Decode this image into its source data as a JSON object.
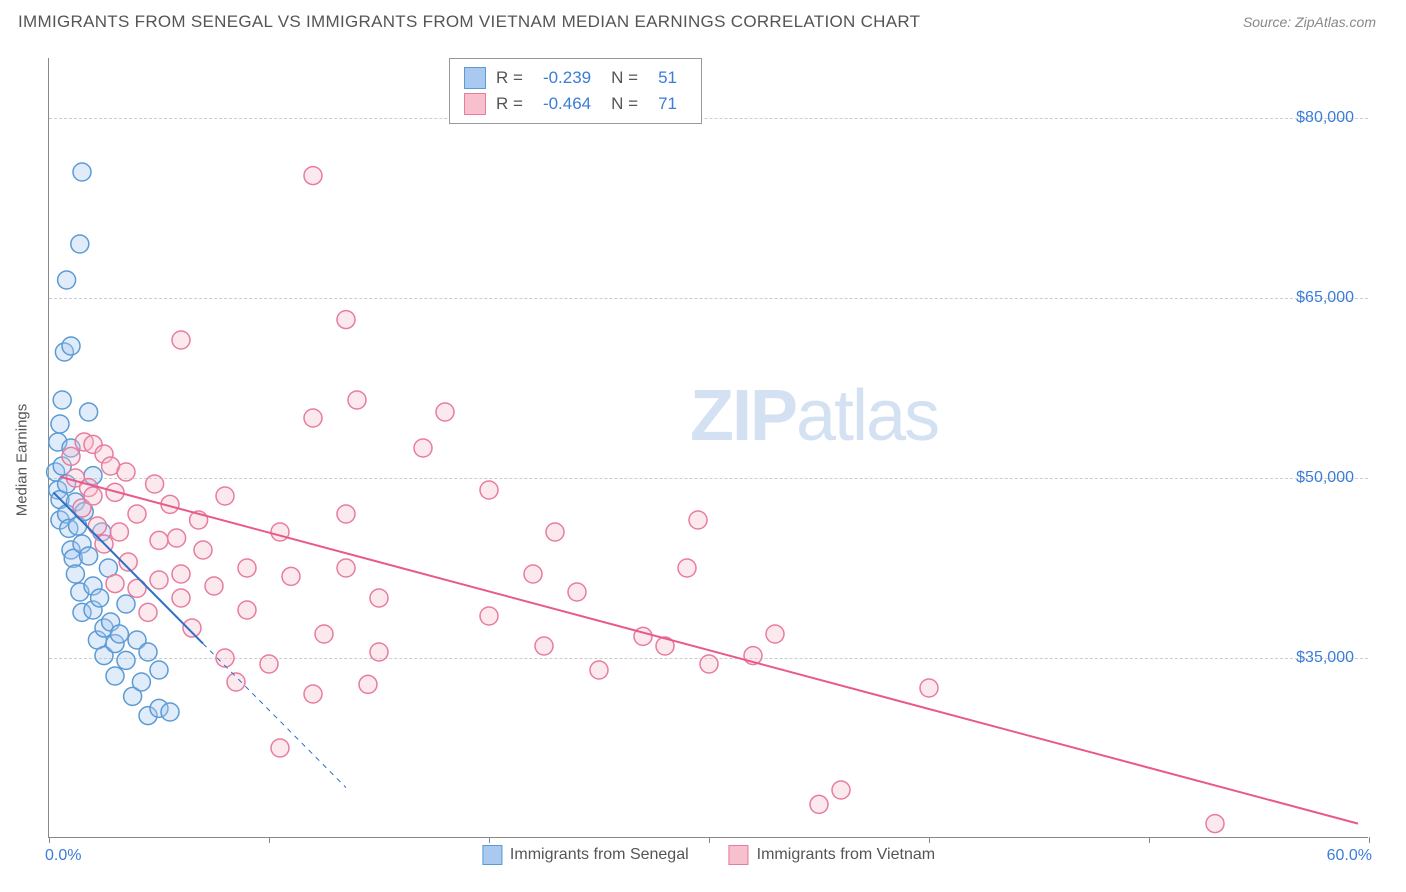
{
  "title": "IMMIGRANTS FROM SENEGAL VS IMMIGRANTS FROM VIETNAM MEDIAN EARNINGS CORRELATION CHART",
  "source": "Source: ZipAtlas.com",
  "watermark_a": "ZIP",
  "watermark_b": "atlas",
  "y_axis_label": "Median Earnings",
  "chart": {
    "type": "scatter",
    "xlim": [
      0,
      60
    ],
    "ylim": [
      20000,
      85000
    ],
    "x_min_label": "0.0%",
    "x_max_label": "60.0%",
    "x_ticks": [
      0,
      10,
      20,
      30,
      40,
      50,
      60
    ],
    "y_ticks": [
      35000,
      50000,
      65000,
      80000
    ],
    "y_tick_labels": [
      "$35,000",
      "$50,000",
      "$65,000",
      "$80,000"
    ],
    "grid_color": "#cccccc",
    "axis_color": "#888888",
    "tick_label_color": "#3b7dd8",
    "background": "#ffffff",
    "marker_radius": 9,
    "line_width": 2,
    "series": [
      {
        "name": "Immigrants from Senegal",
        "color_fill": "#a9c9f0",
        "color_stroke": "#5b9bd5",
        "line_color": "#2e6fc7",
        "R": "-0.239",
        "N": "51",
        "trend_solid": [
          [
            0.2,
            48800
          ],
          [
            7.0,
            36200
          ]
        ],
        "trend_dashed": [
          [
            7.0,
            36200
          ],
          [
            13.5,
            24200
          ]
        ],
        "points": [
          [
            0.3,
            50500
          ],
          [
            0.4,
            53000
          ],
          [
            0.4,
            49000
          ],
          [
            0.5,
            46500
          ],
          [
            0.5,
            48200
          ],
          [
            0.6,
            51000
          ],
          [
            0.7,
            60500
          ],
          [
            0.8,
            47000
          ],
          [
            0.8,
            49500
          ],
          [
            0.9,
            45800
          ],
          [
            1.0,
            52500
          ],
          [
            1.0,
            44000
          ],
          [
            1.1,
            43300
          ],
          [
            1.2,
            48000
          ],
          [
            1.2,
            42000
          ],
          [
            1.3,
            46000
          ],
          [
            1.4,
            40500
          ],
          [
            1.5,
            44500
          ],
          [
            1.5,
            38800
          ],
          [
            1.6,
            47200
          ],
          [
            1.8,
            55500
          ],
          [
            1.8,
            43500
          ],
          [
            2.0,
            41000
          ],
          [
            2.0,
            39000
          ],
          [
            2.2,
            36500
          ],
          [
            2.3,
            40000
          ],
          [
            2.5,
            37500
          ],
          [
            2.5,
            35200
          ],
          [
            2.7,
            42500
          ],
          [
            2.8,
            38000
          ],
          [
            3.0,
            36200
          ],
          [
            3.0,
            33500
          ],
          [
            3.2,
            37000
          ],
          [
            3.5,
            34800
          ],
          [
            3.5,
            39500
          ],
          [
            3.8,
            31800
          ],
          [
            4.0,
            36500
          ],
          [
            4.2,
            33000
          ],
          [
            4.5,
            35500
          ],
          [
            4.5,
            30200
          ],
          [
            5.0,
            30800
          ],
          [
            5.0,
            34000
          ],
          [
            5.5,
            30500
          ],
          [
            1.0,
            61000
          ],
          [
            0.8,
            66500
          ],
          [
            1.5,
            75500
          ],
          [
            1.4,
            69500
          ],
          [
            0.6,
            56500
          ],
          [
            0.5,
            54500
          ],
          [
            2.0,
            50200
          ],
          [
            2.4,
            45500
          ]
        ]
      },
      {
        "name": "Immigrants from Vietnam",
        "color_fill": "#f7c0cd",
        "color_stroke": "#e87ca0",
        "line_color": "#e85a8a",
        "R": "-0.464",
        "N": "71",
        "trend_solid": [
          [
            0.5,
            50100
          ],
          [
            59.5,
            21200
          ]
        ],
        "trend_dashed": null,
        "points": [
          [
            1.0,
            51800
          ],
          [
            1.2,
            50000
          ],
          [
            1.5,
            47500
          ],
          [
            1.6,
            53000
          ],
          [
            1.8,
            49200
          ],
          [
            2.0,
            48500
          ],
          [
            2.0,
            52800
          ],
          [
            2.2,
            46000
          ],
          [
            2.5,
            52000
          ],
          [
            2.5,
            44500
          ],
          [
            2.8,
            51000
          ],
          [
            3.0,
            48800
          ],
          [
            3.0,
            41200
          ],
          [
            3.2,
            45500
          ],
          [
            3.5,
            50500
          ],
          [
            3.6,
            43000
          ],
          [
            4.0,
            47000
          ],
          [
            4.0,
            40800
          ],
          [
            4.5,
            38800
          ],
          [
            4.8,
            49500
          ],
          [
            5.0,
            44800
          ],
          [
            5.0,
            41500
          ],
          [
            5.5,
            47800
          ],
          [
            5.8,
            45000
          ],
          [
            6.0,
            42000
          ],
          [
            6.0,
            40000
          ],
          [
            6.5,
            37500
          ],
          [
            6.8,
            46500
          ],
          [
            7.0,
            44000
          ],
          [
            7.5,
            41000
          ],
          [
            8.0,
            48500
          ],
          [
            8.0,
            35000
          ],
          [
            8.5,
            33000
          ],
          [
            9.0,
            42500
          ],
          [
            9.0,
            39000
          ],
          [
            10.0,
            34500
          ],
          [
            10.5,
            45500
          ],
          [
            10.5,
            27500
          ],
          [
            11.0,
            41800
          ],
          [
            12.0,
            32000
          ],
          [
            12.0,
            55000
          ],
          [
            12.5,
            37000
          ],
          [
            13.5,
            42500
          ],
          [
            13.5,
            47000
          ],
          [
            13.5,
            63200
          ],
          [
            14.0,
            56500
          ],
          [
            14.5,
            32800
          ],
          [
            15.0,
            40000
          ],
          [
            15.0,
            35500
          ],
          [
            17.0,
            52500
          ],
          [
            18.0,
            55500
          ],
          [
            20.0,
            49000
          ],
          [
            20.0,
            38500
          ],
          [
            22.0,
            42000
          ],
          [
            22.5,
            36000
          ],
          [
            23.0,
            45500
          ],
          [
            24.0,
            40500
          ],
          [
            25.0,
            34000
          ],
          [
            27.0,
            36800
          ],
          [
            28.0,
            36000
          ],
          [
            29.0,
            42500
          ],
          [
            29.5,
            46500
          ],
          [
            30.0,
            34500
          ],
          [
            32.0,
            35200
          ],
          [
            33.0,
            37000
          ],
          [
            35.0,
            22800
          ],
          [
            36.0,
            24000
          ],
          [
            40.0,
            32500
          ],
          [
            53.0,
            21200
          ],
          [
            12.0,
            75200
          ],
          [
            6.0,
            61500
          ]
        ]
      }
    ]
  },
  "legend": {
    "r_label": "R =",
    "n_label": "N ="
  }
}
